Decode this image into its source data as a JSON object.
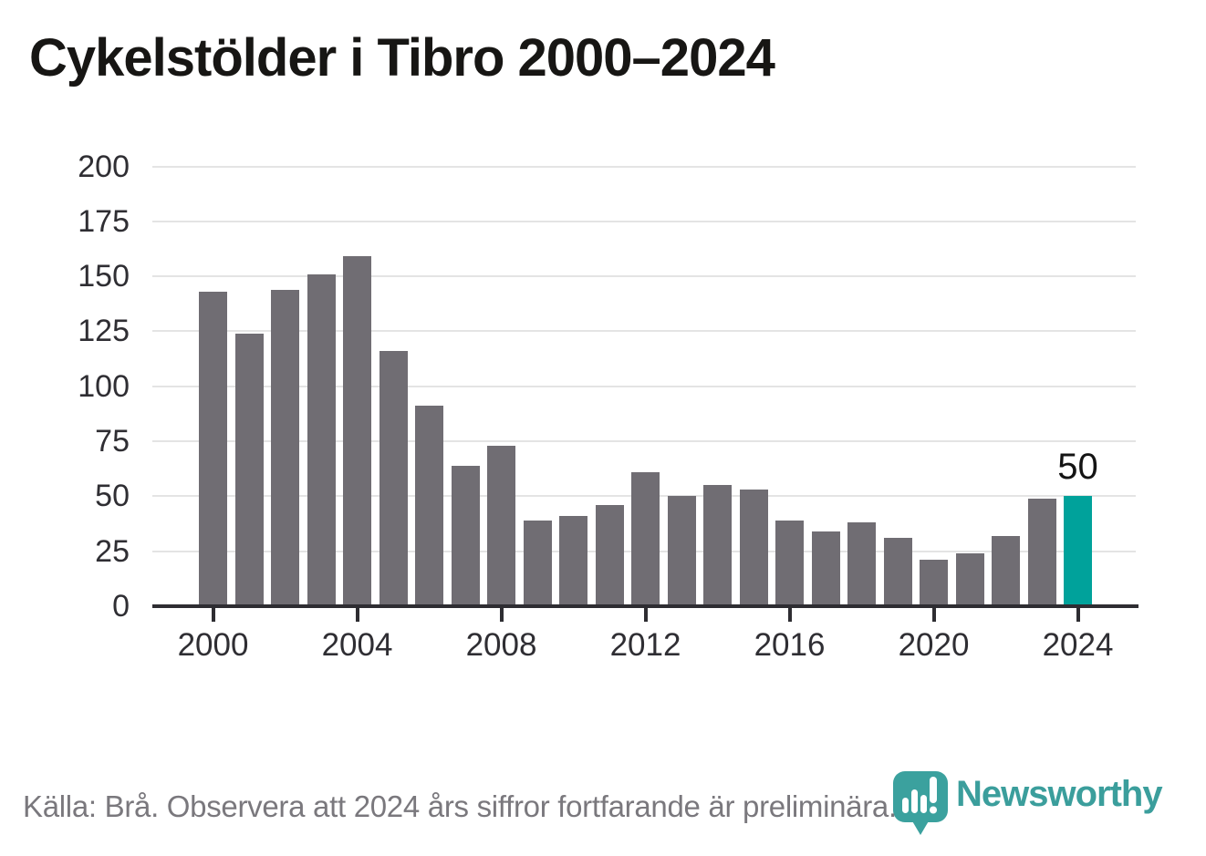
{
  "title": "Cykelstölder i Tibro 2000–2024",
  "footer": {
    "source_note": "Källa: Brå. Observera att 2024 års siffror fortfarande är preliminära."
  },
  "branding": {
    "wordmark": "Newsworthy",
    "logo_icon": "newsworthy-speech-bubble-bar-chart-icon"
  },
  "colors": {
    "bar": "#706d73",
    "highlight": "#00a29b",
    "grid": "#e4e4e4",
    "axis": "#2e2d32",
    "tick_label": "#2f2e33",
    "title": "#171614",
    "footer": "#7a787d",
    "logo_teal": "#3ba19e",
    "wordmark_teal": "#3b9e9c"
  },
  "chart_data": {
    "type": "bar",
    "title": "Cykelstölder i Tibro 2000–2024",
    "xlabel": "",
    "ylabel": "",
    "x": [
      2000,
      2001,
      2002,
      2003,
      2004,
      2005,
      2006,
      2007,
      2008,
      2009,
      2010,
      2011,
      2012,
      2013,
      2014,
      2015,
      2016,
      2017,
      2018,
      2019,
      2020,
      2021,
      2022,
      2023,
      2024
    ],
    "values": [
      143,
      124,
      144,
      151,
      159,
      116,
      91,
      64,
      73,
      39,
      41,
      46,
      61,
      50,
      55,
      53,
      39,
      34,
      38,
      31,
      21,
      24,
      32,
      49,
      50
    ],
    "highlight_index": 24,
    "bar_label": {
      "x": 2024,
      "text": "50"
    },
    "ylim": [
      0,
      200
    ],
    "yticks": [
      0,
      25,
      50,
      75,
      100,
      125,
      150,
      175,
      200
    ],
    "xticks": [
      2000,
      2004,
      2008,
      2012,
      2016,
      2020,
      2024
    ],
    "grid": true,
    "legend": "none"
  }
}
